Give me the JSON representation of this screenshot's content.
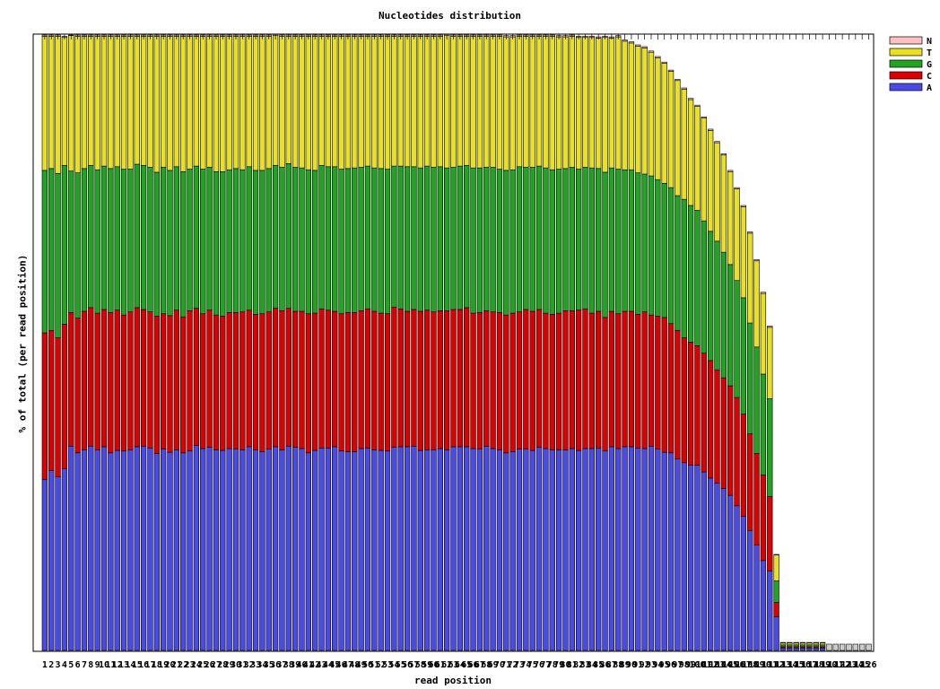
{
  "chart_data": {
    "type": "bar",
    "stacked": true,
    "title": "Nucleotides distribution",
    "xlabel": "read position",
    "ylabel": "% of total (per read position)",
    "legend_placement": "top-right",
    "legend": [
      "N",
      "T",
      "G",
      "C",
      "A"
    ],
    "colors": {
      "A": "#4a4ae8",
      "C": "#dd0000",
      "G": "#1fa51f",
      "T": "#e8e020",
      "N": "#ffc0c0"
    },
    "x_range": [
      1,
      126
    ],
    "y_range": [
      0,
      100
    ],
    "series_note": "values per read position, stacked bottom-to-top A, C, G, T, N; positions 1-119 have data",
    "series": [
      {
        "name": "A",
        "values": [
          27.8,
          29.2,
          28.2,
          29.5,
          33.2,
          32.1,
          32.6,
          33.2,
          32.6,
          33.1,
          32.1,
          32.5,
          32.4,
          32.6,
          33.1,
          33.2,
          32.9,
          32.0,
          32.7,
          32.2,
          32.6,
          32.1,
          32.4,
          33.3,
          32.8,
          33.0,
          32.6,
          32.5,
          32.8,
          32.7,
          32.6,
          33.1,
          32.6,
          32.3,
          32.7,
          33.1,
          32.6,
          33.2,
          33.0,
          32.8,
          32.1,
          32.5,
          32.9,
          32.9,
          33.1,
          32.4,
          32.3,
          32.3,
          32.8,
          32.9,
          32.6,
          32.5,
          32.4,
          33.0,
          33.1,
          33.1,
          33.2,
          32.5,
          32.6,
          32.6,
          32.8,
          32.6,
          33.1,
          33.1,
          33.1,
          32.8,
          32.7,
          33.2,
          32.8,
          32.6,
          32.1,
          32.3,
          32.7,
          32.7,
          32.5,
          33.0,
          32.8,
          32.6,
          32.6,
          32.6,
          32.8,
          32.5,
          32.8,
          32.8,
          32.9,
          32.4,
          33.1,
          32.8,
          33.1,
          33.1,
          32.9,
          32.8,
          33.2,
          32.7,
          32.2,
          32.1,
          31.1,
          30.5,
          30.1,
          30.1,
          29.0,
          28.0,
          27.2,
          26.3,
          25.2,
          23.5,
          21.8,
          19.5,
          17.1,
          14.6,
          12.9,
          5.5,
          0.4,
          0.4,
          0.4,
          0.4,
          0.4,
          0.4,
          0.4,
          0,
          0,
          0,
          0,
          0,
          0,
          0
        ]
      },
      {
        "name": "C",
        "values": [
          23.8,
          22.8,
          22.6,
          23.5,
          21.7,
          21.9,
          22.5,
          22.5,
          22.2,
          22.3,
          22.8,
          22.8,
          22.1,
          22.4,
          22.6,
          22.2,
          22.1,
          22.3,
          22.0,
          22.2,
          22.7,
          22.1,
          22.8,
          22.3,
          21.9,
          22.3,
          21.9,
          21.8,
          22.1,
          22.2,
          22.4,
          22.2,
          22.0,
          22.4,
          22.3,
          22.5,
          22.6,
          22.4,
          22.1,
          22.3,
          22.6,
          22.3,
          22.6,
          22.4,
          22.0,
          22.3,
          22.6,
          22.6,
          22.4,
          22.6,
          22.5,
          22.3,
          22.3,
          22.8,
          22.4,
          22.0,
          22.2,
          22.6,
          22.7,
          22.4,
          22.4,
          22.6,
          22.3,
          22.3,
          22.6,
          22.0,
          22.2,
          22.0,
          22.2,
          22.3,
          22.4,
          22.5,
          22.3,
          22.7,
          22.6,
          22.4,
          22.0,
          22.0,
          22.2,
          22.6,
          22.4,
          22.8,
          22.7,
          22.0,
          22.2,
          21.7,
          22.0,
          21.9,
          22.0,
          22.0,
          21.7,
          22.2,
          21.3,
          21.6,
          21.9,
          21.0,
          20.9,
          20.3,
          20.0,
          19.4,
          19.3,
          19.1,
          18.4,
          18.0,
          17.8,
          17.6,
          16.6,
          15.7,
          14.9,
          13.9,
          12.1,
          2.3,
          0.2,
          0.2,
          0.2,
          0.2,
          0.2,
          0.2,
          0.2,
          0,
          0,
          0,
          0,
          0,
          0,
          0
        ]
      },
      {
        "name": "G",
        "values": [
          26.4,
          26.3,
          26.7,
          25.8,
          23.0,
          23.6,
          23.2,
          23.1,
          23.3,
          23.3,
          23.4,
          23.3,
          23.7,
          23.2,
          23.3,
          23.4,
          23.5,
          23.4,
          23.8,
          23.6,
          23.3,
          23.6,
          23.0,
          23.1,
          23.5,
          23.2,
          23.3,
          23.5,
          23.2,
          23.4,
          23.1,
          23.3,
          23.4,
          23.3,
          23.3,
          23.2,
          23.3,
          23.5,
          23.4,
          23.3,
          23.4,
          23.2,
          23.3,
          23.3,
          23.5,
          23.5,
          23.4,
          23.5,
          23.3,
          23.2,
          23.3,
          23.5,
          23.5,
          22.9,
          23.2,
          23.5,
          23.2,
          23.3,
          23.4,
          23.5,
          23.4,
          23.2,
          23.1,
          23.3,
          23.1,
          23.6,
          23.5,
          23.3,
          23.5,
          23.3,
          23.5,
          23.3,
          23.6,
          23.1,
          23.4,
          23.3,
          23.6,
          23.5,
          23.4,
          23.1,
          23.3,
          22.9,
          23.0,
          23.6,
          23.2,
          23.6,
          23.3,
          23.5,
          23.0,
          23.0,
          23.0,
          22.4,
          22.6,
          22.2,
          21.8,
          22.1,
          21.9,
          22.5,
          22.2,
          22.0,
          21.5,
          21.0,
          20.9,
          20.4,
          19.7,
          19.0,
          18.9,
          18.0,
          17.3,
          16.4,
          15.9,
          3.5,
          0.3,
          0.3,
          0.3,
          0.3,
          0.3,
          0.3,
          0.3,
          0,
          0,
          0,
          0,
          0,
          0,
          0
        ]
      },
      {
        "name": "T",
        "values": [
          21.8,
          21.5,
          22.3,
          20.8,
          22.0,
          22.2,
          21.5,
          21.0,
          21.7,
          21.1,
          21.5,
          21.2,
          21.6,
          21.6,
          20.8,
          21.0,
          21.3,
          22.1,
          21.3,
          21.8,
          21.2,
          22.0,
          21.6,
          21.1,
          21.6,
          21.3,
          22.0,
          22.0,
          21.7,
          21.5,
          21.7,
          21.2,
          21.8,
          21.8,
          21.5,
          21.1,
          21.3,
          20.7,
          21.3,
          21.4,
          21.7,
          21.8,
          21.0,
          21.2,
          21.2,
          21.6,
          21.5,
          21.4,
          21.3,
          21.1,
          21.4,
          21.5,
          21.6,
          21.1,
          21.1,
          21.2,
          21.2,
          21.4,
          21.1,
          21.3,
          21.2,
          21.5,
          21.3,
          21.1,
          21.0,
          21.4,
          21.4,
          21.3,
          21.3,
          21.6,
          21.7,
          21.6,
          21.2,
          21.3,
          21.3,
          21.1,
          21.4,
          21.7,
          21.5,
          21.4,
          21.3,
          21.4,
          21.1,
          21.2,
          21.2,
          21.9,
          21.1,
          21.5,
          20.9,
          20.6,
          20.6,
          20.5,
          20.1,
          19.8,
          19.5,
          18.9,
          18.7,
          17.9,
          17.2,
          16.9,
          16.7,
          16.4,
          16.0,
          15.8,
          15.1,
          14.9,
          14.8,
          14.6,
          14.0,
          13.1,
          11.6,
          4.2,
          0.3,
          0.3,
          0.3,
          0.3,
          0.3,
          0.3,
          0.3,
          0,
          0,
          0,
          0,
          0,
          0,
          0
        ]
      },
      {
        "name": "N",
        "values": [
          0.2,
          0.2,
          0.2,
          0.2,
          0.1,
          0.2,
          0.2,
          0.2,
          0.2,
          0.2,
          0.2,
          0.2,
          0.2,
          0.2,
          0.2,
          0.2,
          0.2,
          0.2,
          0.2,
          0.2,
          0.2,
          0.2,
          0.2,
          0.2,
          0.2,
          0.2,
          0.2,
          0.2,
          0.2,
          0.2,
          0.2,
          0.2,
          0.2,
          0.2,
          0.2,
          0.2,
          0.2,
          0.2,
          0.2,
          0.2,
          0.2,
          0.2,
          0.2,
          0.2,
          0.2,
          0.2,
          0.2,
          0.2,
          0.2,
          0.2,
          0.2,
          0.2,
          0.2,
          0.2,
          0.2,
          0.2,
          0.2,
          0.2,
          0.2,
          0.2,
          0.2,
          0.2,
          0.2,
          0.2,
          0.2,
          0.2,
          0.2,
          0.2,
          0.2,
          0.2,
          0.2,
          0.2,
          0.2,
          0.2,
          0.2,
          0.2,
          0.2,
          0.2,
          0.2,
          0.2,
          0.2,
          0.2,
          0.2,
          0.2,
          0.2,
          0.2,
          0.2,
          0.2,
          0.2,
          0.2,
          0.2,
          0.2,
          0.2,
          0.2,
          0.2,
          0.2,
          0.2,
          0.2,
          0.2,
          0.2,
          0.2,
          0.2,
          0.2,
          0.2,
          0.2,
          0.2,
          0.2,
          0.2,
          0.2,
          0.2,
          0.2,
          0.1,
          0.1,
          0.1,
          0.1,
          0.1,
          0.1,
          0.1,
          0.1,
          0,
          0,
          0,
          0,
          0,
          0,
          0
        ]
      }
    ]
  }
}
